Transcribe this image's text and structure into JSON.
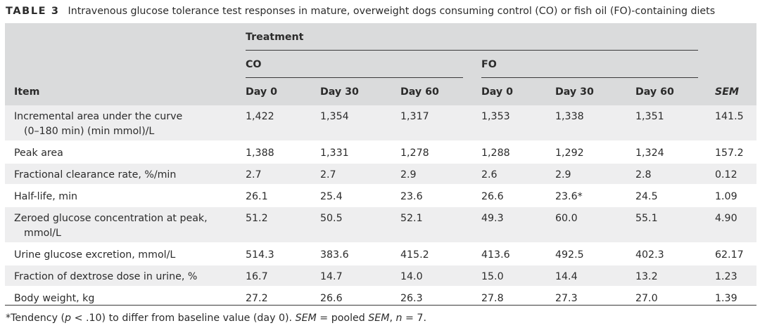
{
  "caption": {
    "label": "TABLE 3",
    "text": "Intravenous glucose tolerance test responses in mature, overweight dogs consuming control (CO) or fish oil (FO)-containing diets"
  },
  "header": {
    "treatment": "Treatment",
    "groups": [
      "CO",
      "FO"
    ],
    "item": "Item",
    "days": [
      "Day 0",
      "Day 30",
      "Day 60",
      "Day 0",
      "Day 30",
      "Day 60"
    ],
    "sem": "SEM"
  },
  "rows": [
    {
      "item_line1": "Incremental area under the curve",
      "item_line2": "(0–180 min) (min mmol)/L",
      "values": [
        "1,422",
        "1,354",
        "1,317",
        "1,353",
        "1,338",
        "1,351"
      ],
      "sem": "141.5"
    },
    {
      "item_line1": "Peak area",
      "item_line2": "",
      "values": [
        "1,388",
        "1,331",
        "1,278",
        "1,288",
        "1,292",
        "1,324"
      ],
      "sem": "157.2"
    },
    {
      "item_line1": "Fractional clearance rate, %/min",
      "item_line2": "",
      "values": [
        "2.7",
        "2.7",
        "2.9",
        "2.6",
        "2.9",
        "2.8"
      ],
      "sem": "0.12"
    },
    {
      "item_line1": "Half-life, min",
      "item_line2": "",
      "values": [
        "26.1",
        "25.4",
        "23.6",
        "26.6",
        "23.6*",
        "24.5"
      ],
      "sem": "1.09"
    },
    {
      "item_line1": "Zeroed glucose concentration at peak,",
      "item_line2": "mmol/L",
      "values": [
        "51.2",
        "50.5",
        "52.1",
        "49.3",
        "60.0",
        "55.1"
      ],
      "sem": "4.90"
    },
    {
      "item_line1": "Urine glucose excretion, mmol/L",
      "item_line2": "",
      "values": [
        "514.3",
        "383.6",
        "415.2",
        "413.6",
        "492.5",
        "402.3"
      ],
      "sem": "62.17"
    },
    {
      "item_line1": "Fraction of dextrose dose in urine, %",
      "item_line2": "",
      "values": [
        "16.7",
        "14.7",
        "14.0",
        "15.0",
        "14.4",
        "13.2"
      ],
      "sem": "1.23"
    },
    {
      "item_line1": "Body weight, kg",
      "item_line2": "",
      "values": [
        "27.2",
        "26.6",
        "26.3",
        "27.8",
        "27.3",
        "27.0"
      ],
      "sem": "1.39"
    }
  ],
  "footnote": {
    "part1": "*Tendency (",
    "p": "p",
    "part2": " < .10) to differ from baseline value (day 0). ",
    "sem1": "SEM",
    "part3": " = pooled ",
    "sem2": "SEM",
    "part4": ", ",
    "n": "n",
    "part5": " = 7."
  }
}
